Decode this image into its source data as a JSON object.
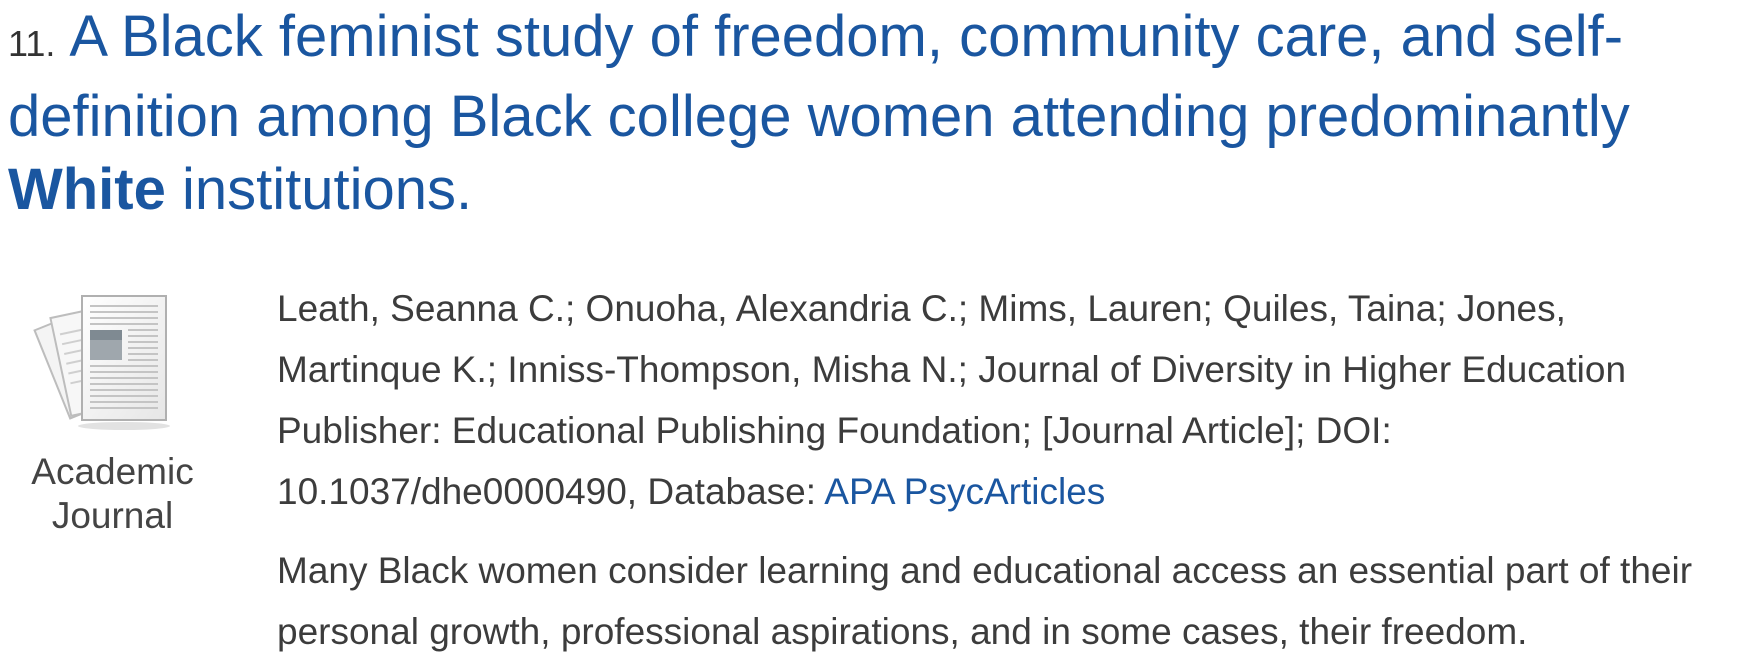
{
  "result": {
    "number": "11.",
    "title_part1": "A Black feminist study of freedom, community care, and self-definition among Black college women attending predominantly ",
    "title_bold": "White",
    "title_part2": " institutions.",
    "pub_type": {
      "icon": "journal-document-icon",
      "line1": "Academic",
      "line2": "Journal"
    },
    "details_text": "Leath, Seanna C.; Onuoha, Alexandria C.; Mims, Lauren; Quiles, Taina; Jones, Martinque K.; Inniss-Thompson, Misha N.; Journal of Diversity in Higher Education Publisher: Educational Publishing Foundation; [Journal Article]; DOI: 10.1037/dhe0000490, Database: ",
    "database_link": "APA PsycArticles",
    "abstract": "Many Black women consider learning and educational access an essential part of their personal growth, professional aspirations, and in some cases, their freedom."
  },
  "colors": {
    "link": "#1a56a0",
    "text": "#3c3c3c"
  }
}
